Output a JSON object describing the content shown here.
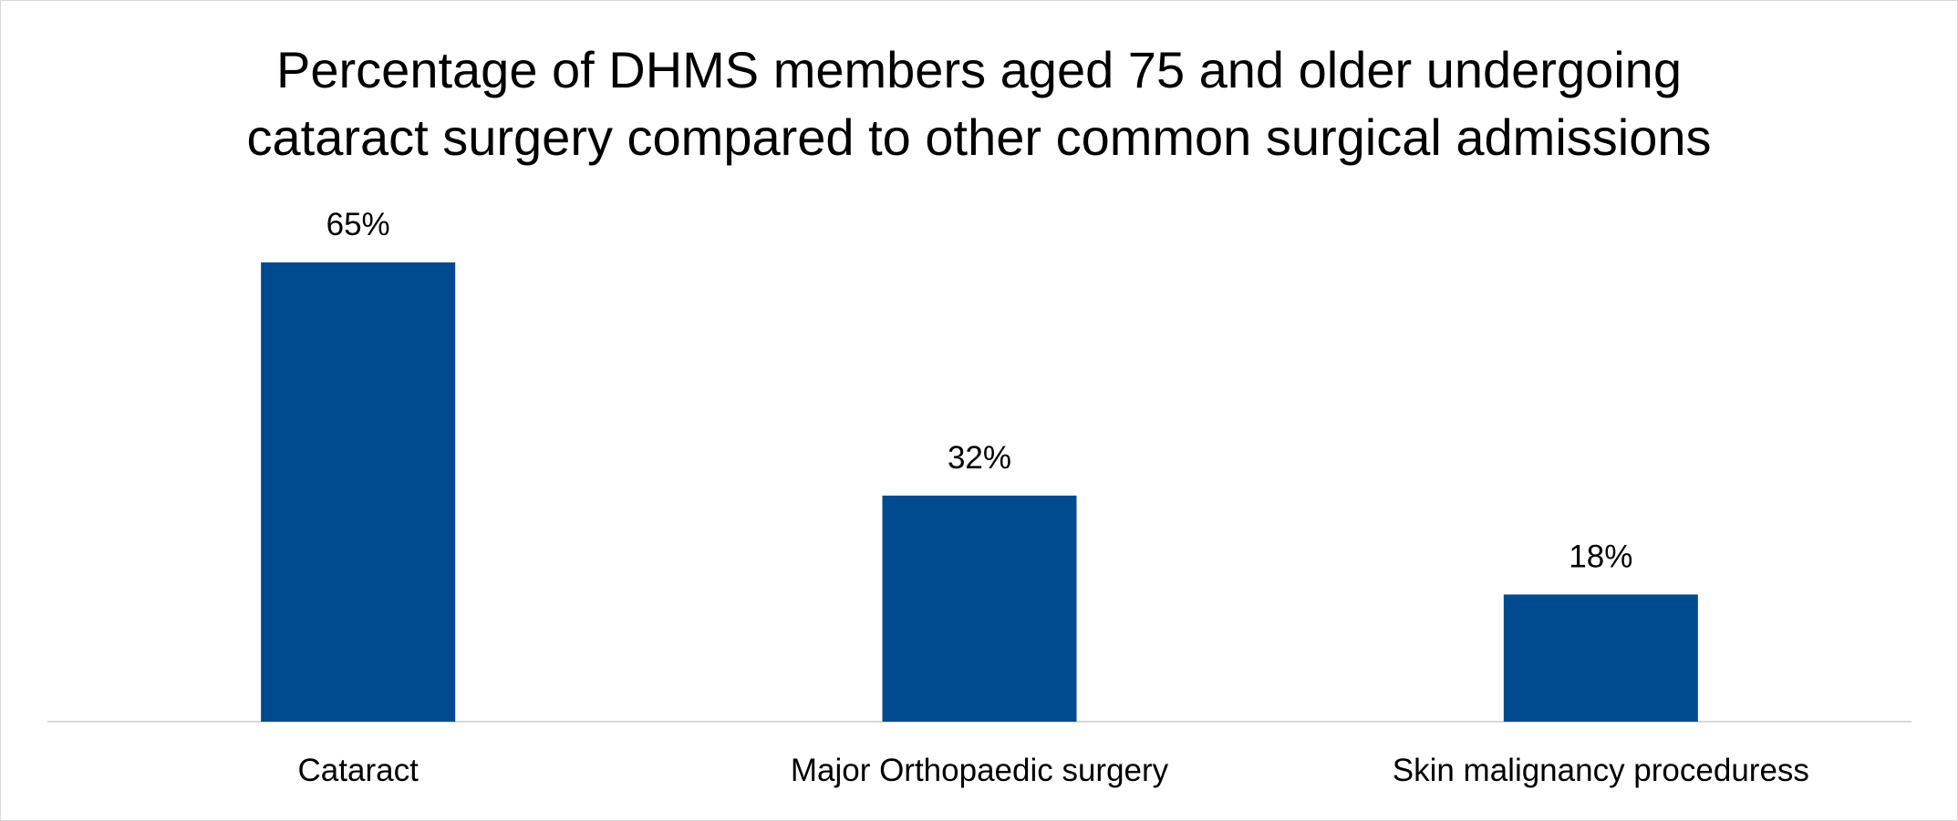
{
  "chart_data": {
    "type": "bar",
    "title_lines": [
      "Percentage of DHMS members aged 75 and older undergoing",
      "cataract surgery compared to other common surgical admissions"
    ],
    "categories": [
      "Cataract",
      "Major Orthopaedic surgery",
      "Skin malignancy proceduress"
    ],
    "values": [
      65,
      32,
      18
    ],
    "value_labels": [
      "65%",
      "32%",
      "18%"
    ],
    "unit": "%",
    "ylim": [
      0,
      65
    ],
    "grid": false,
    "legend": "none",
    "bar_color": "#004a8f",
    "axis_color": "#d9d9d9"
  }
}
